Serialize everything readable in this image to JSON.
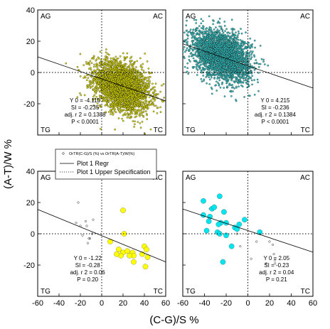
{
  "figure": {
    "xlabel": "(C-G)/S %",
    "ylabel": "(A-T)/W %",
    "x_ticks": [
      "-60",
      "-40",
      "-20",
      "0",
      "20",
      "40",
      "60"
    ],
    "y_ticks": [
      "40",
      "20",
      "0",
      "-20"
    ],
    "legend": {
      "header": "OrTR(C-G)/S (%) vs OrTR(A-T)/W(%)",
      "regr": "Plot 1 Regr",
      "upper": "Plot 1 Upper Specification"
    }
  },
  "chart_data": [
    {
      "type": "scatter",
      "panel": "top-left",
      "corners": {
        "tl": "AG",
        "tr": "AC",
        "bl": "TG",
        "br": "TC"
      },
      "xlim": [
        -60,
        60
      ],
      "ylim": [
        -40,
        40
      ],
      "point_color": "#e6e600",
      "cloud": {
        "center": [
          19,
          -9
        ],
        "spread": [
          13,
          8
        ],
        "corr": -0.35,
        "n": 3000,
        "note": "dense yellow point cloud"
      },
      "regression": {
        "y0": -4.11,
        "slope": -0.235
      },
      "stats": [
        "Y 0 = -4.110",
        "SI = -0.235",
        "adj. r 2 = 0.1388",
        "P < 0.0001"
      ]
    },
    {
      "type": "scatter",
      "panel": "top-right",
      "corners": {
        "tl": "AG",
        "tr": "AC",
        "bl": "TG",
        "br": "TC"
      },
      "xlim": [
        -60,
        60
      ],
      "ylim": [
        -40,
        40
      ],
      "point_color": "#33cccc",
      "cloud": {
        "center": [
          -24,
          11
        ],
        "spread": [
          13,
          8
        ],
        "corr": -0.35,
        "n": 3000,
        "note": "dense cyan point cloud"
      },
      "regression": {
        "y0": 4.215,
        "slope": -0.236
      },
      "stats": [
        "Y 0 = 4.215",
        "SI = -0.236",
        "adj. r 2 = 0.1384",
        "P < 0.0001"
      ]
    },
    {
      "type": "scatter",
      "panel": "bottom-left",
      "corners": {
        "tl": "AG",
        "tr": "AC",
        "bl": "TG",
        "br": "TC"
      },
      "xlim": [
        -60,
        60
      ],
      "ylim": [
        -40,
        40
      ],
      "point_color": "#ffff00",
      "points_main": [
        [
          20,
          15
        ],
        [
          21,
          0
        ],
        [
          8,
          -5
        ],
        [
          16,
          -10
        ],
        [
          20,
          -12
        ],
        [
          24,
          -11
        ],
        [
          29,
          -12
        ],
        [
          30,
          -14
        ],
        [
          26,
          -14
        ],
        [
          18,
          -14
        ],
        [
          14,
          -13
        ],
        [
          38,
          -13
        ],
        [
          40,
          -8
        ],
        [
          42,
          -10
        ],
        [
          43,
          -15
        ],
        [
          41,
          -21
        ],
        [
          30,
          -18
        ]
      ],
      "points_other": [
        [
          -22,
          20
        ],
        [
          -24,
          7
        ],
        [
          -15,
          8
        ],
        [
          -14,
          5
        ],
        [
          -18,
          -1
        ],
        [
          -9,
          0
        ],
        [
          -12,
          -3
        ],
        [
          -11,
          -3
        ],
        [
          -13,
          -6
        ],
        [
          -8,
          9
        ],
        [
          -20,
          5
        ]
      ],
      "regression": {
        "y0": -1.22,
        "slope": -0.28
      },
      "stats": [
        "Y 0 = -1.22",
        "SI = -0.28",
        "adj. r 2 = 0.06",
        "P = 0.20"
      ]
    },
    {
      "type": "scatter",
      "panel": "bottom-right",
      "corners": {
        "tl": "AG",
        "tr": "AC",
        "bl": "TG",
        "br": "TC"
      },
      "xlim": [
        -60,
        60
      ],
      "ylim": [
        -40,
        40
      ],
      "point_color": "#00e5ee",
      "points_main": [
        [
          -41,
          21
        ],
        [
          -33,
          16
        ],
        [
          -31,
          17
        ],
        [
          -26,
          24
        ],
        [
          -41,
          12
        ],
        [
          -36,
          8
        ],
        [
          -22,
          14
        ],
        [
          -20,
          7
        ],
        [
          -25,
          7
        ],
        [
          -27,
          6
        ],
        [
          -28,
          1
        ],
        [
          -26,
          0
        ],
        [
          -20,
          -1
        ],
        [
          -12,
          4
        ],
        [
          -8,
          6
        ],
        [
          -3,
          9
        ],
        [
          11,
          1
        ],
        [
          -10,
          3
        ],
        [
          -35,
          11
        ],
        [
          -38,
          2
        ],
        [
          -23,
          -18
        ],
        [
          -15,
          -8
        ]
      ],
      "points_other": [
        [
          -35,
          16
        ],
        [
          -10,
          0
        ],
        [
          -7,
          -8
        ],
        [
          20,
          -5
        ],
        [
          23,
          -7
        ],
        [
          24,
          -13
        ],
        [
          25,
          -17
        ],
        [
          25,
          -19
        ],
        [
          17,
          -19
        ],
        [
          8,
          -5
        ],
        [
          3,
          -16
        ]
      ],
      "regression": {
        "y0": 2.05,
        "slope": -0.23
      },
      "stats": [
        "Y 0 = 2.05",
        "SI = -0.23",
        "adj. r 2 = 0.04",
        "P = 0.21"
      ]
    }
  ]
}
